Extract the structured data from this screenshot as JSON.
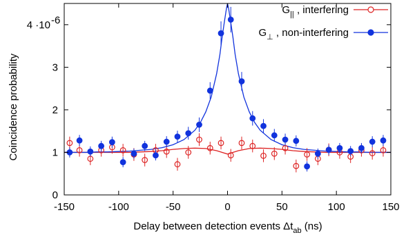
{
  "chart_data": {
    "type": "scatter",
    "xlabel_main": "Delay between detection events Δt",
    "xlabel_sub": "ab",
    "xlabel_unit": " (ns)",
    "ylabel": "Coincidence probability",
    "xlim": [
      -150,
      150
    ],
    "ylim": [
      0,
      4.5
    ],
    "x_ticks": [
      -150,
      -100,
      -50,
      0,
      50,
      100,
      150
    ],
    "x_tick_labels": [
      "-150",
      "-100",
      "-50",
      "0",
      "50",
      "100",
      "150"
    ],
    "y_ticks": [
      0,
      1,
      2,
      3,
      4
    ],
    "y_tick_labels": [
      "0",
      "1",
      "2",
      "3",
      "4 ·10"
    ],
    "y_tick_exponent": "-6",
    "grid": false,
    "legend_position": "top-right",
    "series": [
      {
        "name": "G||",
        "legend_main": "G",
        "legend_sub": "||",
        "legend_rest": " , interfering",
        "color": "#dd2222",
        "marker": "open-circle",
        "x": [
          -145,
          -136,
          -126,
          -116,
          -106,
          -96,
          -86,
          -76,
          -66,
          -56,
          -46,
          -36,
          -26,
          -16,
          -6,
          3,
          13,
          23,
          33,
          43,
          53,
          63,
          73,
          83,
          93,
          103,
          113,
          123,
          133,
          143
        ],
        "y": [
          1.22,
          1.05,
          0.85,
          1.05,
          1.12,
          1.05,
          0.95,
          0.82,
          1.05,
          1.02,
          0.72,
          1.0,
          1.3,
          1.1,
          1.22,
          0.93,
          1.22,
          1.15,
          0.92,
          0.97,
          1.1,
          0.68,
          0.95,
          0.85,
          1.06,
          1.0,
          0.9,
          1.05,
          0.98,
          1.05
        ],
        "err": [
          0.15,
          0.15,
          0.15,
          0.15,
          0.15,
          0.15,
          0.15,
          0.15,
          0.15,
          0.15,
          0.15,
          0.15,
          0.15,
          0.15,
          0.15,
          0.15,
          0.15,
          0.15,
          0.15,
          0.15,
          0.15,
          0.15,
          0.15,
          0.15,
          0.15,
          0.15,
          0.15,
          0.15,
          0.15,
          0.15
        ],
        "fit": {
          "x": [
            -150,
            -140,
            -130,
            -120,
            -110,
            -100,
            -90,
            -80,
            -70,
            -60,
            -50,
            -40,
            -30,
            -20,
            -10,
            0,
            10,
            20,
            30,
            40,
            50,
            60,
            70,
            80,
            90,
            100,
            110,
            120,
            130,
            140,
            150
          ],
          "y": [
            1.0,
            1.0,
            1.0,
            1.0,
            1.0,
            1.0,
            1.0,
            1.01,
            1.02,
            1.04,
            1.07,
            1.09,
            1.1,
            1.09,
            1.04,
            0.96,
            1.04,
            1.09,
            1.1,
            1.09,
            1.07,
            1.04,
            1.02,
            1.01,
            1.0,
            1.0,
            1.0,
            1.0,
            1.0,
            1.0,
            1.0
          ]
        }
      },
      {
        "name": "G⊥",
        "legend_main": "G",
        "legend_sub": "⊥",
        "legend_rest": " , non-interfering",
        "color": "#1133dd",
        "marker": "filled-circle",
        "x": [
          -145,
          -136,
          -126,
          -116,
          -106,
          -96,
          -86,
          -76,
          -66,
          -56,
          -46,
          -36,
          -26,
          -16,
          -6,
          3,
          13,
          23,
          33,
          43,
          53,
          63,
          73,
          83,
          93,
          103,
          113,
          123,
          133,
          143
        ],
        "y": [
          1.0,
          1.28,
          1.02,
          1.15,
          1.24,
          0.77,
          0.97,
          1.15,
          0.93,
          1.25,
          1.37,
          1.45,
          1.65,
          2.45,
          3.8,
          4.12,
          2.67,
          1.8,
          1.62,
          1.4,
          1.3,
          1.27,
          0.67,
          0.97,
          1.06,
          1.1,
          1.03,
          1.1,
          1.25,
          1.28
        ],
        "err": [
          0.12,
          0.13,
          0.12,
          0.12,
          0.13,
          0.12,
          0.12,
          0.12,
          0.12,
          0.13,
          0.14,
          0.15,
          0.17,
          0.2,
          0.28,
          0.3,
          0.22,
          0.17,
          0.16,
          0.15,
          0.14,
          0.13,
          0.12,
          0.12,
          0.12,
          0.12,
          0.12,
          0.12,
          0.13,
          0.13
        ],
        "fit": {
          "x": [
            -150,
            -140,
            -130,
            -120,
            -110,
            -100,
            -90,
            -80,
            -70,
            -60,
            -50,
            -40,
            -30,
            -25,
            -20,
            -15,
            -10,
            -7,
            -5,
            -3,
            -1,
            0,
            1,
            3,
            5,
            7,
            10,
            15,
            20,
            25,
            30,
            40,
            50,
            60,
            70,
            80,
            90,
            100,
            110,
            120,
            130,
            140,
            150
          ],
          "y": [
            1.0,
            1.0,
            1.0,
            1.01,
            1.01,
            1.02,
            1.03,
            1.05,
            1.07,
            1.11,
            1.18,
            1.3,
            1.52,
            1.7,
            1.95,
            2.3,
            2.85,
            3.3,
            3.7,
            4.05,
            4.38,
            4.5,
            4.38,
            4.05,
            3.7,
            3.3,
            2.85,
            2.3,
            1.95,
            1.7,
            1.52,
            1.3,
            1.18,
            1.11,
            1.07,
            1.05,
            1.03,
            1.02,
            1.01,
            1.01,
            1.0,
            1.0,
            1.0
          ]
        }
      }
    ]
  }
}
